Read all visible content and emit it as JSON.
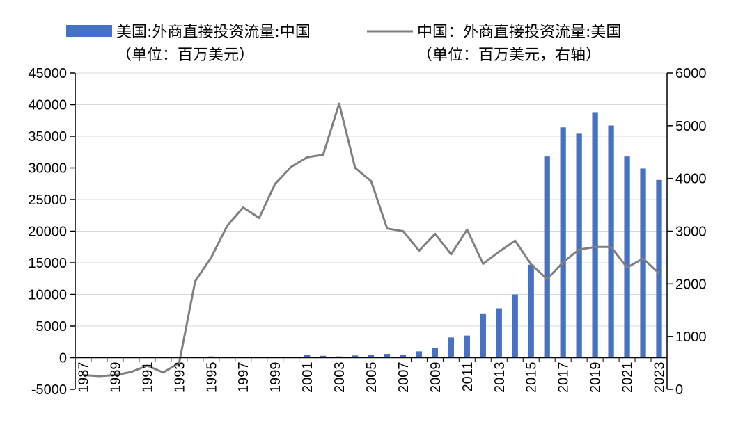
{
  "chart_data": {
    "type": "bar+line",
    "legend": [
      {
        "line1": "美国:外商直接投资流量:中国",
        "line2": "（单位：百万美元）",
        "kind": "bar"
      },
      {
        "line1": "中国：外商直接投资流量:美国",
        "line2": "（单位：百万美元，右轴）",
        "kind": "line"
      }
    ],
    "years": [
      1987,
      1988,
      1989,
      1990,
      1991,
      1992,
      1993,
      1994,
      1995,
      1996,
      1997,
      1998,
      1999,
      2000,
      2001,
      2002,
      2003,
      2004,
      2005,
      2006,
      2007,
      2008,
      2009,
      2010,
      2011,
      2012,
      2013,
      2014,
      2015,
      2016,
      2017,
      2018,
      2019,
      2020,
      2021,
      2022,
      2023
    ],
    "x_tick_labels": [
      "1987",
      "1989",
      "1991",
      "1993",
      "1995",
      "1997",
      "1999",
      "2001",
      "2003",
      "2005",
      "2007",
      "2009",
      "2011",
      "2013",
      "2015",
      "2017",
      "2019",
      "2021",
      "2023"
    ],
    "left_axis": {
      "ylim": [
        -5000,
        45000
      ],
      "ticks": [
        "45000",
        "40000",
        "35000",
        "30000",
        "25000",
        "20000",
        "15000",
        "10000",
        "5000",
        "0",
        "-5000"
      ]
    },
    "right_axis": {
      "ylim": [
        0,
        6000
      ],
      "ticks": [
        "6000",
        "5000",
        "4000",
        "3000",
        "2000",
        "1000",
        "0"
      ]
    },
    "series": [
      {
        "name": "美国:外商直接投资流量:中国",
        "type": "bar",
        "axis": "left",
        "color": "#4472C4",
        "values": [
          0,
          0,
          0,
          0,
          0,
          0,
          0,
          100,
          200,
          50,
          50,
          150,
          150,
          100,
          500,
          300,
          200,
          350,
          450,
          600,
          500,
          1000,
          1500,
          3200,
          3500,
          7000,
          7800,
          10000,
          14700,
          31800,
          36400,
          35400,
          38800,
          36700,
          31800,
          29900,
          28100
        ]
      },
      {
        "name": "中国：外商直接投资流量:美国",
        "type": "line",
        "axis": "right",
        "color": "#7F7F7F",
        "values": [
          270,
          250,
          270,
          330,
          450,
          320,
          500,
          2050,
          2500,
          3100,
          3450,
          3250,
          3900,
          4220,
          4400,
          4450,
          5420,
          4200,
          3950,
          3050,
          3000,
          2630,
          2950,
          2560,
          3030,
          2380,
          2610,
          2820,
          2370,
          2090,
          2410,
          2650,
          2700,
          2700,
          2310,
          2480,
          2200
        ]
      }
    ]
  }
}
